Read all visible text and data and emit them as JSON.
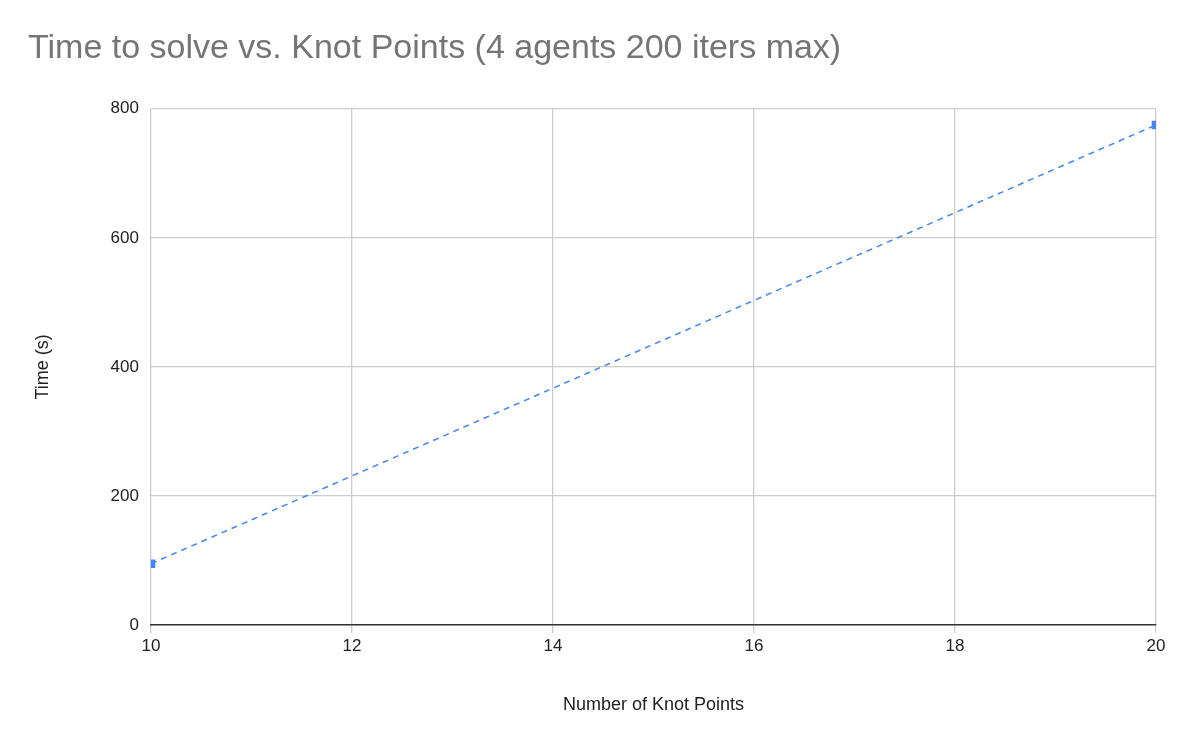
{
  "chart_data": {
    "type": "line",
    "title": "Time to solve vs. Knot Points (4 agents 200 iters max)",
    "xlabel": "Number of Knot Points",
    "ylabel": "Time (s)",
    "x": [
      10,
      20
    ],
    "values": [
      95,
      775
    ],
    "color": "#4285f4",
    "marker": "square",
    "line_style": "dashed",
    "xlim": [
      10,
      20
    ],
    "xticks": [
      10,
      12,
      14,
      16,
      18,
      20
    ],
    "ylim": [
      0,
      800
    ],
    "yticks": [
      0,
      200,
      400,
      600,
      800
    ],
    "grid": true
  }
}
